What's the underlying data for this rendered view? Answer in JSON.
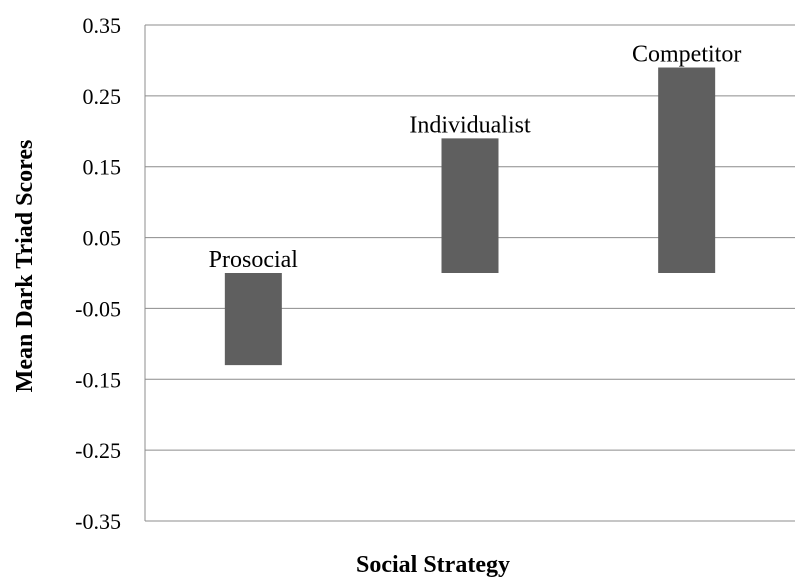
{
  "chart_data": {
    "type": "bar",
    "categories": [
      "Prosocial",
      "Individualist",
      "Competitor"
    ],
    "values": [
      -0.13,
      0.19,
      0.29
    ],
    "data_labels": [
      "Prosocial",
      "Individualist",
      "Competitor"
    ],
    "xlabel": "Social Strategy",
    "ylabel": "Mean Dark Triad Scores",
    "ylim": [
      -0.35,
      0.35
    ],
    "yticks": [
      0.35,
      0.25,
      0.15,
      0.05,
      -0.05,
      -0.15,
      -0.25,
      -0.35
    ],
    "ytick_labels": [
      "0.35",
      "0.25",
      "0.15",
      "0.05",
      "-0.05",
      "-0.15",
      "-0.25",
      "-0.35"
    ],
    "grid": true,
    "bar_color": "#5f5f5f"
  }
}
